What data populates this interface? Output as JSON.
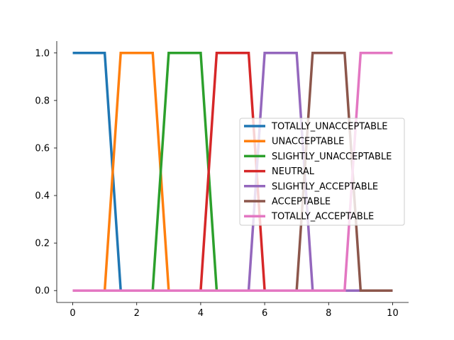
{
  "chart_data": {
    "type": "line",
    "title": "",
    "xlabel": "",
    "ylabel": "",
    "xlim": [
      -0.5,
      10.5
    ],
    "ylim": [
      -0.05,
      1.05
    ],
    "xticks": [
      0,
      2,
      4,
      6,
      8,
      10
    ],
    "yticks": [
      0.0,
      0.2,
      0.4,
      0.6,
      0.8,
      1.0
    ],
    "xtick_labels": [
      "0",
      "2",
      "4",
      "6",
      "8",
      "10"
    ],
    "ytick_labels": [
      "0.0",
      "0.2",
      "0.4",
      "0.6",
      "0.8",
      "1.0"
    ],
    "grid": false,
    "legend_position": "center-right",
    "series": [
      {
        "name": "TOTALLY_UNACCEPTABLE",
        "color": "#1f77b4",
        "x": [
          0,
          1.0,
          1.5,
          10
        ],
        "y": [
          1,
          1,
          0,
          0
        ]
      },
      {
        "name": "UNACCEPTABLE",
        "color": "#ff7f0e",
        "x": [
          0,
          1.0,
          1.5,
          2.5,
          3.0,
          10
        ],
        "y": [
          0,
          0,
          1,
          1,
          0,
          0
        ]
      },
      {
        "name": "SLIGHTLY_UNACCEPTABLE",
        "color": "#2ca02c",
        "x": [
          0,
          2.5,
          3.0,
          4.0,
          4.5,
          10
        ],
        "y": [
          0,
          0,
          1,
          1,
          0,
          0
        ]
      },
      {
        "name": "NEUTRAL",
        "color": "#d62728",
        "x": [
          0,
          4.0,
          4.5,
          5.5,
          6.0,
          10
        ],
        "y": [
          0,
          0,
          1,
          1,
          0,
          0
        ]
      },
      {
        "name": "SLIGHTLY_ACCEPTABLE",
        "color": "#9467bd",
        "x": [
          0,
          5.5,
          6.0,
          7.0,
          7.5,
          10
        ],
        "y": [
          0,
          0,
          1,
          1,
          0,
          0
        ]
      },
      {
        "name": "ACCEPTABLE",
        "color": "#8c564b",
        "x": [
          0,
          7.0,
          7.5,
          8.5,
          9.0,
          10
        ],
        "y": [
          0,
          0,
          1,
          1,
          0,
          0
        ]
      },
      {
        "name": "TOTALLY_ACCEPTABLE",
        "color": "#e377c2",
        "x": [
          0,
          8.5,
          9.0,
          10
        ],
        "y": [
          0,
          0,
          1,
          1
        ]
      }
    ]
  }
}
